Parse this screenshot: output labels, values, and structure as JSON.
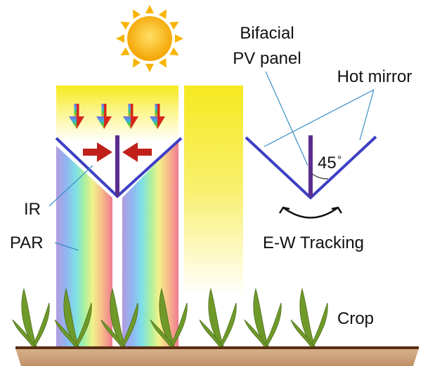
{
  "labels": {
    "bifacial_line1": "Bifacial",
    "bifacial_line2": "PV panel",
    "hot_mirror": "Hot mirror",
    "angle": "45",
    "degree": "°",
    "tracking": "E-W Tracking",
    "ir": "IR",
    "par": "PAR",
    "crop": "Crop"
  },
  "icons": {
    "sun": "sun-icon",
    "sunlight_arrow": "down-arrow-icon",
    "ir_arrow": "arrow-icon",
    "rotation": "curved-double-arrow-icon",
    "plant": "plant-icon"
  },
  "colors": {
    "mirror": "#3d3fc4",
    "panel": "#5b2d8e",
    "ir_arrow": "#c0201a",
    "sun": "#f7b400",
    "sunlight": "#f5ea1f",
    "plant": "#6f9a2a",
    "soil": "#c8a27a",
    "soil_line": "#5a2d14",
    "leader_line": "#3a8ec4"
  }
}
